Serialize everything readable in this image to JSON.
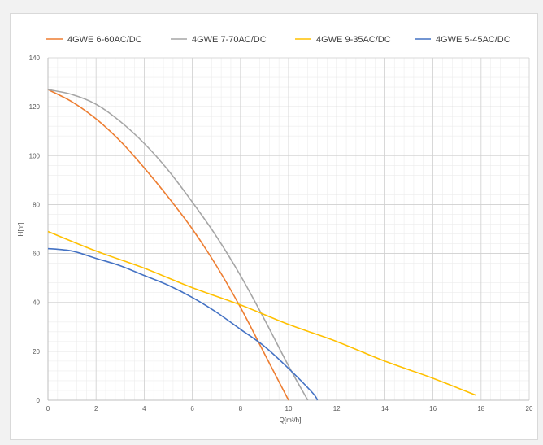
{
  "chart_data": {
    "type": "line",
    "title": "",
    "xlabel": "Q[m³/h]",
    "ylabel": "H[m]",
    "xlim": [
      0,
      20
    ],
    "ylim": [
      0,
      140
    ],
    "x_ticks": [
      0,
      2,
      4,
      6,
      8,
      10,
      12,
      14,
      16,
      18,
      20
    ],
    "y_ticks": [
      0,
      20,
      40,
      60,
      80,
      100,
      120,
      140
    ],
    "grid": true,
    "minor_grid": true,
    "legend_position": "top",
    "series": [
      {
        "name": "4GWE 6-60AC/DC",
        "color": "#ED7D31",
        "points": [
          [
            0,
            127
          ],
          [
            1,
            122
          ],
          [
            2,
            115
          ],
          [
            3,
            106
          ],
          [
            4,
            95
          ],
          [
            5,
            83
          ],
          [
            6,
            70
          ],
          [
            7,
            55
          ],
          [
            8,
            38
          ],
          [
            9,
            19
          ],
          [
            10,
            0
          ]
        ]
      },
      {
        "name": "4GWE 7-70AC/DC",
        "color": "#A5A5A5",
        "points": [
          [
            0,
            127
          ],
          [
            1,
            125
          ],
          [
            2,
            121
          ],
          [
            3,
            114
          ],
          [
            4,
            105
          ],
          [
            5,
            94
          ],
          [
            6,
            81
          ],
          [
            7,
            67
          ],
          [
            8,
            51
          ],
          [
            9,
            33
          ],
          [
            10,
            14
          ],
          [
            10.8,
            0
          ]
        ]
      },
      {
        "name": "4GWE 9-35AC/DC",
        "color": "#FFC000",
        "points": [
          [
            0,
            69
          ],
          [
            2,
            61
          ],
          [
            4,
            54
          ],
          [
            6,
            46
          ],
          [
            8,
            39
          ],
          [
            10,
            31
          ],
          [
            12,
            24
          ],
          [
            14,
            16
          ],
          [
            16,
            9
          ],
          [
            17.8,
            2
          ]
        ]
      },
      {
        "name": "4GWE 5-45AC/DC",
        "color": "#4472C4",
        "points": [
          [
            0,
            62
          ],
          [
            1,
            61
          ],
          [
            2,
            58
          ],
          [
            3,
            55
          ],
          [
            4,
            51
          ],
          [
            5,
            47
          ],
          [
            6,
            42
          ],
          [
            7,
            36
          ],
          [
            8,
            29
          ],
          [
            9,
            22
          ],
          [
            10,
            13
          ],
          [
            11,
            3
          ],
          [
            11.2,
            0
          ]
        ]
      }
    ]
  }
}
